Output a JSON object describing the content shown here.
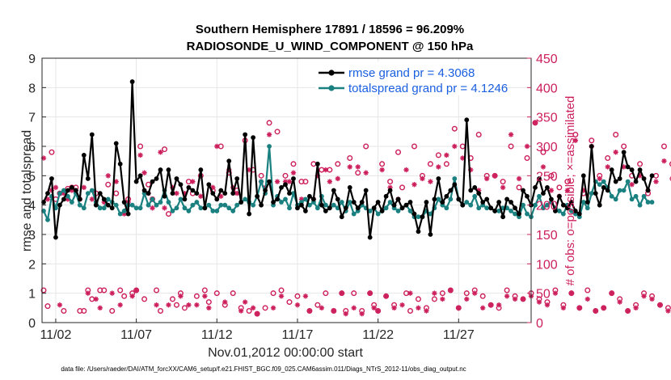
{
  "chart_data": {
    "type": "line",
    "title": "Southern Hemisphere 17891 / 18596 = 96.209%",
    "subtitle": "RADIOSONDE_U_WIND_COMPONENT @ 150 hPa",
    "xlabel": "Nov.01,2012 00:00:00 start",
    "ylabel": "rmse and totalspread",
    "y2label": "# of obs: o=possible; ×=assimilated",
    "xlim": [
      0.65,
      31.0
    ],
    "ylim": [
      0,
      9
    ],
    "y2lim": [
      0,
      450
    ],
    "x_ticks": [
      {
        "x": 1.5,
        "label": "11/02"
      },
      {
        "x": 6.5,
        "label": "11/07"
      },
      {
        "x": 11.5,
        "label": "11/12"
      },
      {
        "x": 16.5,
        "label": "11/17"
      },
      {
        "x": 21.5,
        "label": "11/22"
      },
      {
        "x": 26.5,
        "label": "11/27"
      }
    ],
    "y_ticks": [
      "0",
      "1",
      "2",
      "3",
      "4",
      "5",
      "6",
      "7",
      "8",
      "9"
    ],
    "y2_ticks": [
      "0",
      "50",
      "100",
      "150",
      "200",
      "250",
      "300",
      "350",
      "400",
      "450"
    ],
    "legend": [
      {
        "label": "rmse grand pr = 4.3068",
        "color": "#000000"
      },
      {
        "label": "totalspread grand pr = 4.1246",
        "color": "#1a8080"
      }
    ],
    "footnote": "data file: /Users/raeder/DAI/ATM_forcXX/CAM6_setup/f.e21.FHIST_BGC.f09_025.CAM6assim.011/Diags_NTrS_2012-11/obs_diag_output.nc",
    "series": [
      {
        "name": "rmse",
        "color": "#000000",
        "marker": "circle",
        "x_start": 0.75,
        "x_step": 0.25,
        "values": [
          4.1,
          4.4,
          4.9,
          2.9,
          4.0,
          4.2,
          4.5,
          4.6,
          4.5,
          4.2,
          5.7,
          4.9,
          6.4,
          4.0,
          4.4,
          4.2,
          4.0,
          3.9,
          6.1,
          5.4,
          4.1,
          3.7,
          8.2,
          4.8,
          5.0,
          4.5,
          4.4,
          4.8,
          4.9,
          5.2,
          4.3,
          5.2,
          4.4,
          4.9,
          4.7,
          4.2,
          4.6,
          4.5,
          4.4,
          5.2,
          3.9,
          4.7,
          4.4,
          4.2,
          4.5,
          4.4,
          5.5,
          4.4,
          4.9,
          4.1,
          6.4,
          3.7,
          6.3,
          4.3,
          4.0,
          4.5,
          4.8,
          4.1,
          4.2,
          4.6,
          4.7,
          4.4,
          4.9,
          3.9,
          4.0,
          3.8,
          4.3,
          4.2,
          5.4,
          4.0,
          3.8,
          3.9,
          4.5,
          4.2,
          3.6,
          3.9,
          4.6,
          4.1,
          3.9,
          4.1,
          4.5,
          2.9,
          3.9,
          4.1,
          3.8,
          4.3,
          4.5,
          4.0,
          4.2,
          3.9,
          4.0,
          4.1,
          3.7,
          3.1,
          3.6,
          4.1,
          3.0,
          4.2,
          4.9,
          4.1,
          4.3,
          4.5,
          4.7,
          4.2,
          4.0,
          6.9,
          4.5,
          4.6,
          4.4,
          4.1,
          4.2,
          3.9,
          3.8,
          4.1,
          3.6,
          4.2,
          4.1,
          3.9,
          3.7,
          4.5,
          4.3,
          4.0,
          4.6,
          4.9,
          4.4,
          4.6,
          4.2,
          3.8,
          4.3,
          4.0,
          3.9,
          4.1,
          3.8,
          3.7,
          5.0,
          4.1,
          6.0,
          4.4,
          4.0,
          4.6,
          4.5,
          5.2,
          4.8,
          4.9,
          5.8,
          5.3,
          5.2,
          4.8,
          5.2,
          4.9,
          4.5,
          5.0
        ]
      },
      {
        "name": "totalspread",
        "color": "#1a8080",
        "marker": "circle",
        "x_start": 0.75,
        "x_step": 0.25,
        "values": [
          3.8,
          3.5,
          4.3,
          3.9,
          4.4,
          4.5,
          4.3,
          4.1,
          4.4,
          4.0,
          3.9,
          4.4,
          4.5,
          4.1,
          3.9,
          3.9,
          4.2,
          4.1,
          4.0,
          3.7,
          3.8,
          4.0,
          4.0,
          3.9,
          3.9,
          4.4,
          4.0,
          4.2,
          4.0,
          4.1,
          4.5,
          4.1,
          3.8,
          3.9,
          4.2,
          3.9,
          3.8,
          4.0,
          4.1,
          3.9,
          3.9,
          4.0,
          3.8,
          3.8,
          4.0,
          4.0,
          3.9,
          3.8,
          4.0,
          4.1,
          4.2,
          4.1,
          4.0,
          4.3,
          4.8,
          4.4,
          6.0,
          4.0,
          4.3,
          4.1,
          4.2,
          3.9,
          4.4,
          4.0,
          4.1,
          4.2,
          4.0,
          4.1,
          3.9,
          4.3,
          4.0,
          3.9,
          4.0,
          3.9,
          4.1,
          3.8,
          4.1,
          3.7,
          3.8,
          4.0,
          3.9,
          3.8,
          3.9,
          3.7,
          3.8,
          3.9,
          4.1,
          3.9,
          3.8,
          3.9,
          4.0,
          3.8,
          3.6,
          3.6,
          3.6,
          3.8,
          3.7,
          3.9,
          4.2,
          4.0,
          3.9,
          4.2,
          4.9,
          4.2,
          4.0,
          4.1,
          4.0,
          4.3,
          3.9,
          4.0,
          3.9,
          3.9,
          3.8,
          3.8,
          3.9,
          3.9,
          3.8,
          3.7,
          3.6,
          4.0,
          3.7,
          3.6,
          4.0,
          4.3,
          3.9,
          4.0,
          4.1,
          3.9,
          3.8,
          3.7,
          4.0,
          3.8,
          3.7,
          3.6,
          4.1,
          3.9,
          4.4,
          4.8,
          4.7,
          4.8,
          4.6,
          4.3,
          4.2,
          4.5,
          4.5,
          4.8,
          4.2,
          4.3,
          4.0,
          4.3,
          4.1,
          4.1
        ]
      }
    ],
    "obs_series": [
      {
        "name": "possible (o)",
        "axis": "right",
        "color": "#cc1f5c",
        "marker": "o",
        "x_start": 0.75,
        "x_step": 0.25,
        "values": [
          55,
          28,
          290,
          210,
          220,
          20,
          228,
          230,
          230,
          20,
          20,
          55,
          40,
          220,
          55,
          55,
          235,
          20,
          220,
          55,
          45,
          210,
          50,
          55,
          300,
          40,
          235,
          210,
          55,
          20,
          295,
          185,
          40,
          30,
          50,
          25,
          240,
          220,
          45,
          250,
          55,
          35,
          225,
          50,
          300,
          30,
          255,
          50,
          225,
          25,
          310,
          20,
          260,
          15,
          250,
          25,
          340,
          50,
          325,
          55,
          250,
          35,
          270,
          45,
          240,
          240,
          20,
          270,
          30,
          260,
          50,
          260,
          20,
          270,
          50,
          20,
          280,
          50,
          255,
          20,
          300,
          50,
          30,
          20,
          270,
          45,
          240,
          30,
          290,
          230,
          50,
          20,
          300,
          40,
          250,
          25,
          270,
          40,
          285,
          50,
          270,
          55,
          330,
          25,
          300,
          50,
          280,
          55,
          320,
          45,
          250,
          30,
          250,
          25,
          240,
          55,
          300,
          45,
          230,
          40,
          280,
          50,
          340,
          40,
          290,
          35,
          250,
          55,
          230,
          30,
          240,
          50,
          320,
          25,
          220,
          55,
          310,
          20,
          250,
          25,
          280,
          50,
          320,
          40,
          300,
          20,
          250,
          30,
          270,
          50,
          220,
          45,
          250,
          30,
          300,
          25,
          270,
          40,
          230,
          10,
          250,
          0
        ]
      },
      {
        "name": "assimilated (×)",
        "axis": "right",
        "color": "#cc1f5c",
        "marker": "*",
        "x_start": 0.75,
        "x_step": 0.25,
        "values": [
          280,
          210,
          225,
          230,
          30,
          220,
          210,
          225,
          225,
          210,
          230,
          50,
          210,
          40,
          25,
          205,
          250,
          50,
          240,
          30,
          185,
          205,
          45,
          55,
          285,
          255,
          220,
          195,
          30,
          290,
          195,
          30,
          230,
          220,
          45,
          220,
          30,
          240,
          30,
          215,
          45,
          25,
          230,
          300,
          215,
          35,
          260,
          230,
          220,
          20,
          35,
          260,
          25,
          15,
          240,
          230,
          320,
          25,
          240,
          45,
          240,
          240,
          255,
          30,
          210,
          45,
          20,
          210,
          250,
          25,
          260,
          240,
          20,
          245,
          50,
          15,
          265,
          25,
          265,
          15,
          255,
          50,
          25,
          20,
          260,
          45,
          230,
          25,
          210,
          30,
          260,
          50,
          235,
          25,
          245,
          20,
          240,
          50,
          265,
          40,
          285,
          55,
          300,
          25,
          280,
          40,
          260,
          50,
          225,
          25,
          245,
          30,
          250,
          30,
          230,
          45,
          320,
          40,
          245,
          40,
          300,
          45,
          340,
          35,
          265,
          30,
          225,
          50,
          215,
          25,
          225,
          50,
          310,
          25,
          225,
          40,
          300,
          20,
          245,
          25,
          265,
          50,
          290,
          35,
          265,
          20,
          235,
          25,
          250,
          45,
          225,
          40,
          240,
          30,
          275,
          20,
          245,
          35,
          215,
          5,
          240,
          5
        ]
      }
    ]
  }
}
